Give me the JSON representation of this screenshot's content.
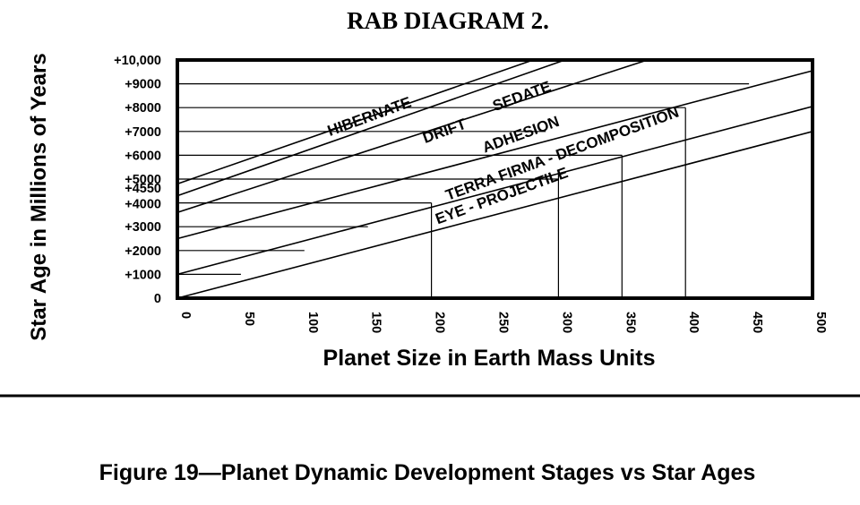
{
  "chart_data": {
    "type": "line",
    "title": "RAB DIAGRAM 2.",
    "xlabel": "Planet Size in Earth Mass Units",
    "ylabel": "Star Age in Millions of Years",
    "xlim": [
      0,
      500
    ],
    "ylim": [
      0,
      10000
    ],
    "x_ticks": [
      0,
      50,
      100,
      150,
      200,
      250,
      300,
      350,
      400,
      450,
      500
    ],
    "y_ticks": [
      {
        "value": 0,
        "label": "0"
      },
      {
        "value": 1000,
        "label": "+1000"
      },
      {
        "value": 2000,
        "label": "+2000"
      },
      {
        "value": 3000,
        "label": "+3000"
      },
      {
        "value": 4000,
        "label": "+4000"
      },
      {
        "value": 4550,
        "label": "+4550"
      },
      {
        "value": 5000,
        "label": "+5000"
      },
      {
        "value": 6000,
        "label": "+6000"
      },
      {
        "value": 7000,
        "label": "+7000"
      },
      {
        "value": 8000,
        "label": "+8000"
      },
      {
        "value": 9000,
        "label": "+9000"
      },
      {
        "value": 10000,
        "label": "+10,000"
      }
    ],
    "stage_boundaries": [
      {
        "x": [
          0,
          500
        ],
        "y": [
          0,
          7000
        ]
      },
      {
        "x": [
          0,
          500
        ],
        "y": [
          1000,
          8050
        ]
      },
      {
        "x": [
          0,
          500
        ],
        "y": [
          2500,
          9550
        ]
      },
      {
        "x": [
          0,
          370
        ],
        "y": [
          3600,
          10000
        ]
      },
      {
        "x": [
          0,
          305
        ],
        "y": [
          4300,
          10000
        ]
      },
      {
        "x": [
          0,
          280
        ],
        "y": [
          4800,
          10000
        ]
      }
    ],
    "stages": [
      {
        "name": "EYE - PROJECTILE",
        "x": 205,
        "y": 3100,
        "angle": -20
      },
      {
        "name": "TERRA FIRMA - DECOMPOSITION",
        "x": 213,
        "y": 4100,
        "angle": -20
      },
      {
        "name": "ADHESION",
        "x": 242,
        "y": 6100,
        "angle": -20
      },
      {
        "name": "DRIFT",
        "x": 195,
        "y": 6500,
        "angle": -20
      },
      {
        "name": "SEDATE",
        "x": 250,
        "y": 7850,
        "angle": -20
      },
      {
        "name": "HIBERNATE",
        "x": 120,
        "y": 6800,
        "angle": -20
      }
    ],
    "guide_lines": [
      {
        "y": 9000,
        "x_end": 450
      },
      {
        "y": 8000,
        "x_end": 400
      },
      {
        "y": 7000,
        "x_end": 290
      },
      {
        "y": 6000,
        "x_end": 350
      },
      {
        "y": 5000,
        "x_end": 300
      },
      {
        "y": 4000,
        "x_end": 200
      },
      {
        "y": 3000,
        "x_end": 150
      },
      {
        "y": 2000,
        "x_end": 100
      },
      {
        "y": 1000,
        "x_end": 50
      }
    ],
    "drop_lines": [
      {
        "x": 200,
        "y_top": 4000
      },
      {
        "x": 300,
        "y_top": 5300
      },
      {
        "x": 350,
        "y_top": 6000
      },
      {
        "x": 400,
        "y_top": 8000
      }
    ]
  },
  "caption": "Figure 19—Planet Dynamic Development Stages vs Star Ages"
}
